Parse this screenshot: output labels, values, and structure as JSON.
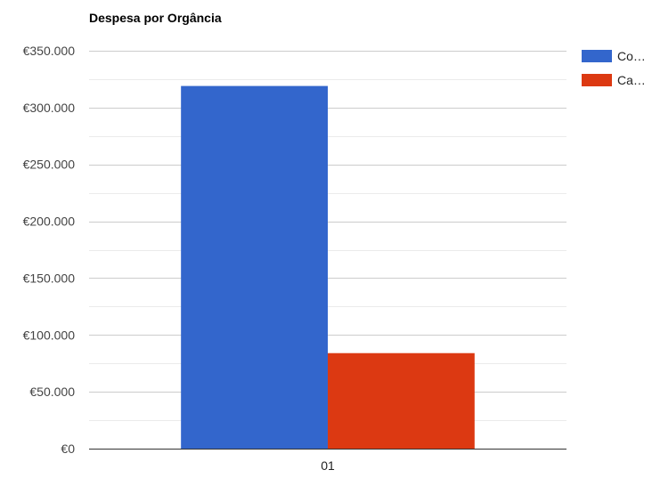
{
  "chart_data": {
    "type": "bar",
    "title": "Despesa por Orgância",
    "xlabel": "",
    "ylabel": "",
    "categories": [
      "01"
    ],
    "series": [
      {
        "name": "Co…",
        "color": "#3366cc",
        "values": [
          319000
        ]
      },
      {
        "name": "Ca…",
        "color": "#dc3912",
        "values": [
          84000
        ]
      }
    ],
    "ylim": [
      0,
      350000
    ],
    "y_ticks": [
      0,
      50000,
      100000,
      150000,
      200000,
      250000,
      300000,
      350000
    ],
    "y_tick_labels": [
      "€0",
      "€50.000",
      "€100.000",
      "€150.000",
      "€200.000",
      "€250.000",
      "€300.000",
      "€350.000"
    ],
    "grid": true,
    "minor_grid": true,
    "legend_position": "right"
  }
}
